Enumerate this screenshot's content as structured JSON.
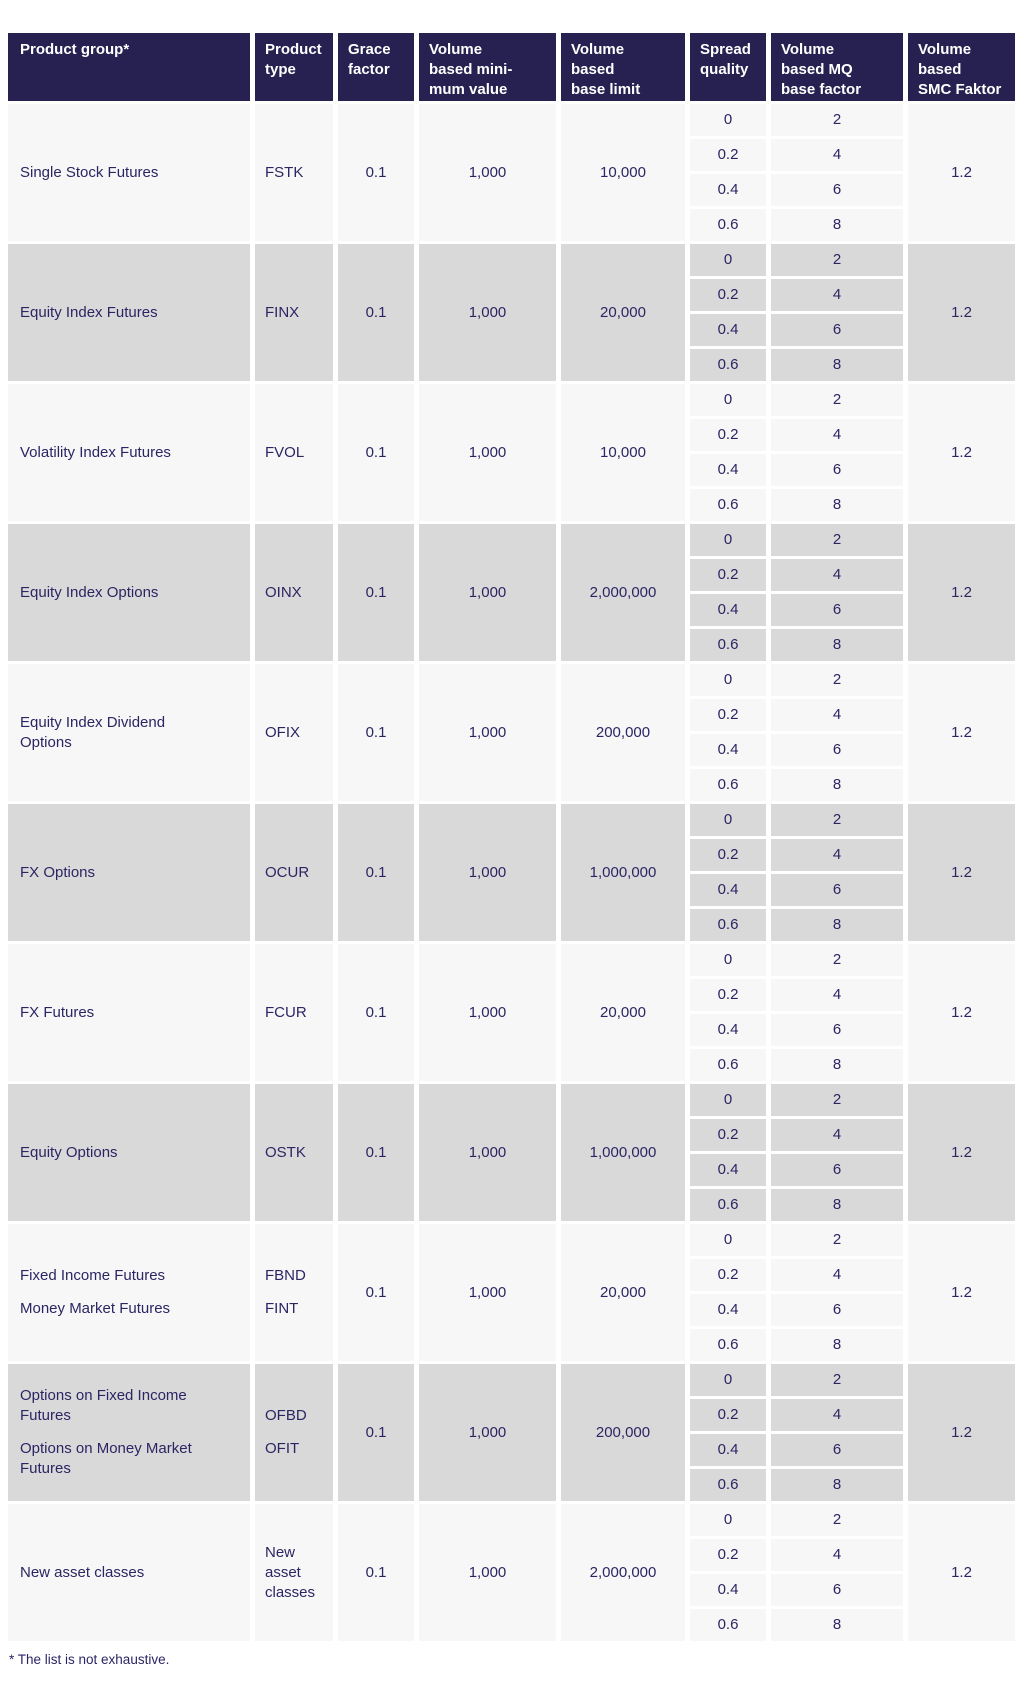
{
  "colors": {
    "header_bg": "#262150",
    "header_text": "#ffffff",
    "body_text": "#2b2563",
    "row_light": "#f7f7f7",
    "row_gray": "#d9d9d9"
  },
  "table": {
    "columns": [
      {
        "id": "product-group",
        "lines": [
          "Product group*"
        ]
      },
      {
        "id": "product-type",
        "lines": [
          "Product",
          "type"
        ]
      },
      {
        "id": "grace-factor",
        "lines": [
          "Grace",
          "factor"
        ]
      },
      {
        "id": "volume-based-minimum-value",
        "lines": [
          "Volume",
          "based mini-",
          "mum value"
        ]
      },
      {
        "id": "volume-based-base-limit",
        "lines": [
          "Volume",
          "based",
          "base limit"
        ]
      },
      {
        "id": "spread-quality",
        "lines": [
          "Spread",
          "quality"
        ]
      },
      {
        "id": "volume-based-mq-base-factor",
        "lines": [
          "Volume",
          "based MQ",
          "base factor"
        ]
      },
      {
        "id": "volume-based-smc-faktor",
        "lines": [
          "Volume",
          "based",
          "SMC Faktor"
        ]
      }
    ],
    "groups": [
      {
        "product_group": [
          "Single Stock Futures"
        ],
        "product_type": [
          "FSTK"
        ],
        "grace_factor": "0.1",
        "min_value": "1,000",
        "base_limit": "10,000",
        "spread_quality": [
          "0",
          "0.2",
          "0.4",
          "0.6"
        ],
        "mq_base_factor": [
          "2",
          "4",
          "6",
          "8"
        ],
        "smc_faktor": "1.2"
      },
      {
        "product_group": [
          "Equity Index Futures"
        ],
        "product_type": [
          "FINX"
        ],
        "grace_factor": "0.1",
        "min_value": "1,000",
        "base_limit": "20,000",
        "spread_quality": [
          "0",
          "0.2",
          "0.4",
          "0.6"
        ],
        "mq_base_factor": [
          "2",
          "4",
          "6",
          "8"
        ],
        "smc_faktor": "1.2"
      },
      {
        "product_group": [
          "Volatility Index Futures"
        ],
        "product_type": [
          "FVOL"
        ],
        "grace_factor": "0.1",
        "min_value": "1,000",
        "base_limit": "10,000",
        "spread_quality": [
          "0",
          "0.2",
          "0.4",
          "0.6"
        ],
        "mq_base_factor": [
          "2",
          "4",
          "6",
          "8"
        ],
        "smc_faktor": "1.2"
      },
      {
        "product_group": [
          "Equity Index Options"
        ],
        "product_type": [
          "OINX"
        ],
        "grace_factor": "0.1",
        "min_value": "1,000",
        "base_limit": "2,000,000",
        "spread_quality": [
          "0",
          "0.2",
          "0.4",
          "0.6"
        ],
        "mq_base_factor": [
          "2",
          "4",
          "6",
          "8"
        ],
        "smc_faktor": "1.2"
      },
      {
        "product_group": [
          "Equity Index Dividend\nOptions"
        ],
        "product_type": [
          "OFIX"
        ],
        "grace_factor": "0.1",
        "min_value": "1,000",
        "base_limit": "200,000",
        "spread_quality": [
          "0",
          "0.2",
          "0.4",
          "0.6"
        ],
        "mq_base_factor": [
          "2",
          "4",
          "6",
          "8"
        ],
        "smc_faktor": "1.2"
      },
      {
        "product_group": [
          "FX Options"
        ],
        "product_type": [
          "OCUR"
        ],
        "grace_factor": "0.1",
        "min_value": "1,000",
        "base_limit": "1,000,000",
        "spread_quality": [
          "0",
          "0.2",
          "0.4",
          "0.6"
        ],
        "mq_base_factor": [
          "2",
          "4",
          "6",
          "8"
        ],
        "smc_faktor": "1.2"
      },
      {
        "product_group": [
          "FX Futures"
        ],
        "product_type": [
          "FCUR"
        ],
        "grace_factor": "0.1",
        "min_value": "1,000",
        "base_limit": "20,000",
        "spread_quality": [
          "0",
          "0.2",
          "0.4",
          "0.6"
        ],
        "mq_base_factor": [
          "2",
          "4",
          "6",
          "8"
        ],
        "smc_faktor": "1.2"
      },
      {
        "product_group": [
          "Equity Options"
        ],
        "product_type": [
          "OSTK"
        ],
        "grace_factor": "0.1",
        "min_value": "1,000",
        "base_limit": "1,000,000",
        "spread_quality": [
          "0",
          "0.2",
          "0.4",
          "0.6"
        ],
        "mq_base_factor": [
          "2",
          "4",
          "6",
          "8"
        ],
        "smc_faktor": "1.2"
      },
      {
        "product_group": [
          "Fixed Income Futures",
          "Money Market Futures"
        ],
        "product_type": [
          "FBND",
          "FINT"
        ],
        "grace_factor": "0.1",
        "min_value": "1,000",
        "base_limit": "20,000",
        "spread_quality": [
          "0",
          "0.2",
          "0.4",
          "0.6"
        ],
        "mq_base_factor": [
          "2",
          "4",
          "6",
          "8"
        ],
        "smc_faktor": "1.2"
      },
      {
        "product_group": [
          "Options on Fixed Income\nFutures",
          "Options on Money Market\nFutures"
        ],
        "product_type": [
          "OFBD",
          "OFIT"
        ],
        "grace_factor": "0.1",
        "min_value": "1,000",
        "base_limit": "200,000",
        "spread_quality": [
          "0",
          "0.2",
          "0.4",
          "0.6"
        ],
        "mq_base_factor": [
          "2",
          "4",
          "6",
          "8"
        ],
        "smc_faktor": "1.2"
      },
      {
        "product_group": [
          "New asset classes"
        ],
        "product_type": [
          "New\nasset\nclasses"
        ],
        "grace_factor": "0.1",
        "min_value": "1,000",
        "base_limit": "2,000,000",
        "spread_quality": [
          "0",
          "0.2",
          "0.4",
          "0.6"
        ],
        "mq_base_factor": [
          "2",
          "4",
          "6",
          "8"
        ],
        "smc_faktor": "1.2"
      }
    ]
  },
  "footnote": "* The list is not exhaustive."
}
